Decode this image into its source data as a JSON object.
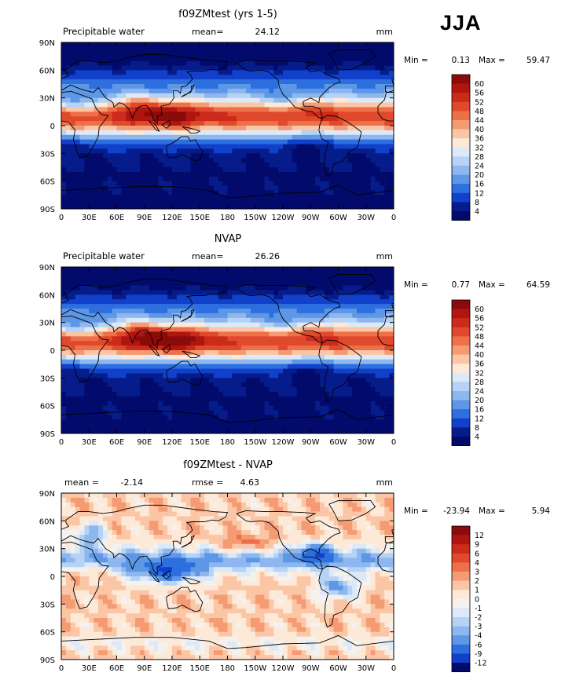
{
  "season": "JJA",
  "panels": [
    {
      "title": "f09ZMtest (yrs 1-5)",
      "left_label": "Precipitable water",
      "stat1_label": "mean=",
      "stat1_value": "24.12",
      "stat2_label": "",
      "stat2_value": "",
      "units": "mm",
      "min_label": "Min =",
      "min_value": "0.13",
      "max_label": "Max =",
      "max_value": "59.47",
      "kind": "abs"
    },
    {
      "title": "NVAP",
      "left_label": "Precipitable water",
      "stat1_label": "mean=",
      "stat1_value": "26.26",
      "stat2_label": "",
      "stat2_value": "",
      "units": "mm",
      "min_label": "Min =",
      "min_value": "0.77",
      "max_label": "Max =",
      "max_value": "64.59",
      "kind": "abs"
    },
    {
      "title": "f09ZMtest - NVAP",
      "left_label": "",
      "stat1_label": "mean =",
      "stat1_value": "-2.14",
      "stat2_label": "rmse =",
      "stat2_value": "4.63",
      "units": "mm",
      "min_label": "Min =",
      "min_value": "-23.94",
      "max_label": "Max =",
      "max_value": "5.94",
      "kind": "diff"
    }
  ],
  "lat_labels": [
    "90N",
    "60N",
    "30N",
    "0",
    "30S",
    "60S",
    "90S"
  ],
  "lon_labels": [
    "0",
    "30E",
    "60E",
    "90E",
    "120E",
    "150E",
    "180",
    "150W",
    "120W",
    "90W",
    "60W",
    "30W",
    "0"
  ],
  "abs_levels": [
    "60",
    "56",
    "52",
    "48",
    "44",
    "40",
    "36",
    "32",
    "28",
    "24",
    "20",
    "16",
    "12",
    "8",
    "4"
  ],
  "diff_levels": [
    "12",
    "9",
    "6",
    "4",
    "3",
    "2",
    "1",
    "0",
    "-1",
    "-2",
    "-3",
    "-4",
    "-6",
    "-9",
    "-12"
  ],
  "colors": {
    "abs_scale": [
      "#8b0a0a",
      "#b0150f",
      "#cc2a1b",
      "#e04a2c",
      "#ee7049",
      "#f59b73",
      "#fbc6a6",
      "#fde9d8",
      "#dce9f8",
      "#b6d2f4",
      "#8db7ee",
      "#5d97e6",
      "#2e6fe0",
      "#1141cb",
      "#061c8a",
      "#020a6b"
    ],
    "diff_scale": [
      "#8b0a0a",
      "#b0150f",
      "#cc2a1b",
      "#e04a2c",
      "#ee7049",
      "#f59b73",
      "#fbc6a6",
      "#fde9d8",
      "#f4f1ee",
      "#dce9f8",
      "#b6d2f4",
      "#8db7ee",
      "#5d97e6",
      "#2e6fe0",
      "#1141cb",
      "#020a6b"
    ]
  },
  "chart_data": [
    {
      "type": "heatmap",
      "title": "f09ZMtest (yrs 1-5)",
      "variable": "Precipitable water",
      "units": "mm",
      "mean": 24.12,
      "min": 0.13,
      "max": 59.47,
      "x_range": [
        0,
        360
      ],
      "y_range": [
        -90,
        90
      ],
      "contour_levels": [
        4,
        8,
        12,
        16,
        20,
        24,
        28,
        32,
        36,
        40,
        44,
        48,
        52,
        56,
        60
      ],
      "zonal_profile": {
        "lat": [
          90,
          75,
          60,
          45,
          30,
          20,
          10,
          0,
          -10,
          -20,
          -30,
          -45,
          -60,
          -75,
          -90
        ],
        "value": [
          10,
          13,
          17,
          22,
          30,
          36,
          44,
          46,
          38,
          26,
          18,
          13,
          8,
          4,
          2
        ]
      }
    },
    {
      "type": "heatmap",
      "title": "NVAP",
      "variable": "Precipitable water",
      "units": "mm",
      "mean": 26.26,
      "min": 0.77,
      "max": 64.59,
      "x_range": [
        0,
        360
      ],
      "y_range": [
        -90,
        90
      ],
      "contour_levels": [
        4,
        8,
        12,
        16,
        20,
        24,
        28,
        32,
        36,
        40,
        44,
        48,
        52,
        56,
        60
      ],
      "zonal_profile": {
        "lat": [
          90,
          75,
          60,
          45,
          30,
          20,
          10,
          0,
          -10,
          -20,
          -30,
          -45,
          -60,
          -75,
          -90
        ],
        "value": [
          11,
          14,
          19,
          25,
          34,
          42,
          50,
          48,
          40,
          28,
          20,
          14,
          9,
          5,
          2
        ]
      }
    },
    {
      "type": "heatmap",
      "title": "f09ZMtest - NVAP",
      "units": "mm",
      "mean": -2.14,
      "rmse": 4.63,
      "min": -23.94,
      "max": 5.94,
      "x_range": [
        0,
        360
      ],
      "y_range": [
        -90,
        90
      ],
      "contour_levels": [
        -12,
        -9,
        -6,
        -4,
        -3,
        -2,
        -1,
        0,
        1,
        2,
        3,
        4,
        6,
        9,
        12
      ],
      "zonal_profile": {
        "lat": [
          90,
          75,
          60,
          45,
          30,
          20,
          10,
          0,
          -10,
          -20,
          -30,
          -45,
          -60,
          -75,
          -90
        ],
        "value": [
          1,
          -1,
          -2,
          -3,
          -5,
          -6,
          -5,
          -2,
          -1,
          -1,
          0,
          1,
          1,
          0,
          -1
        ]
      }
    }
  ]
}
